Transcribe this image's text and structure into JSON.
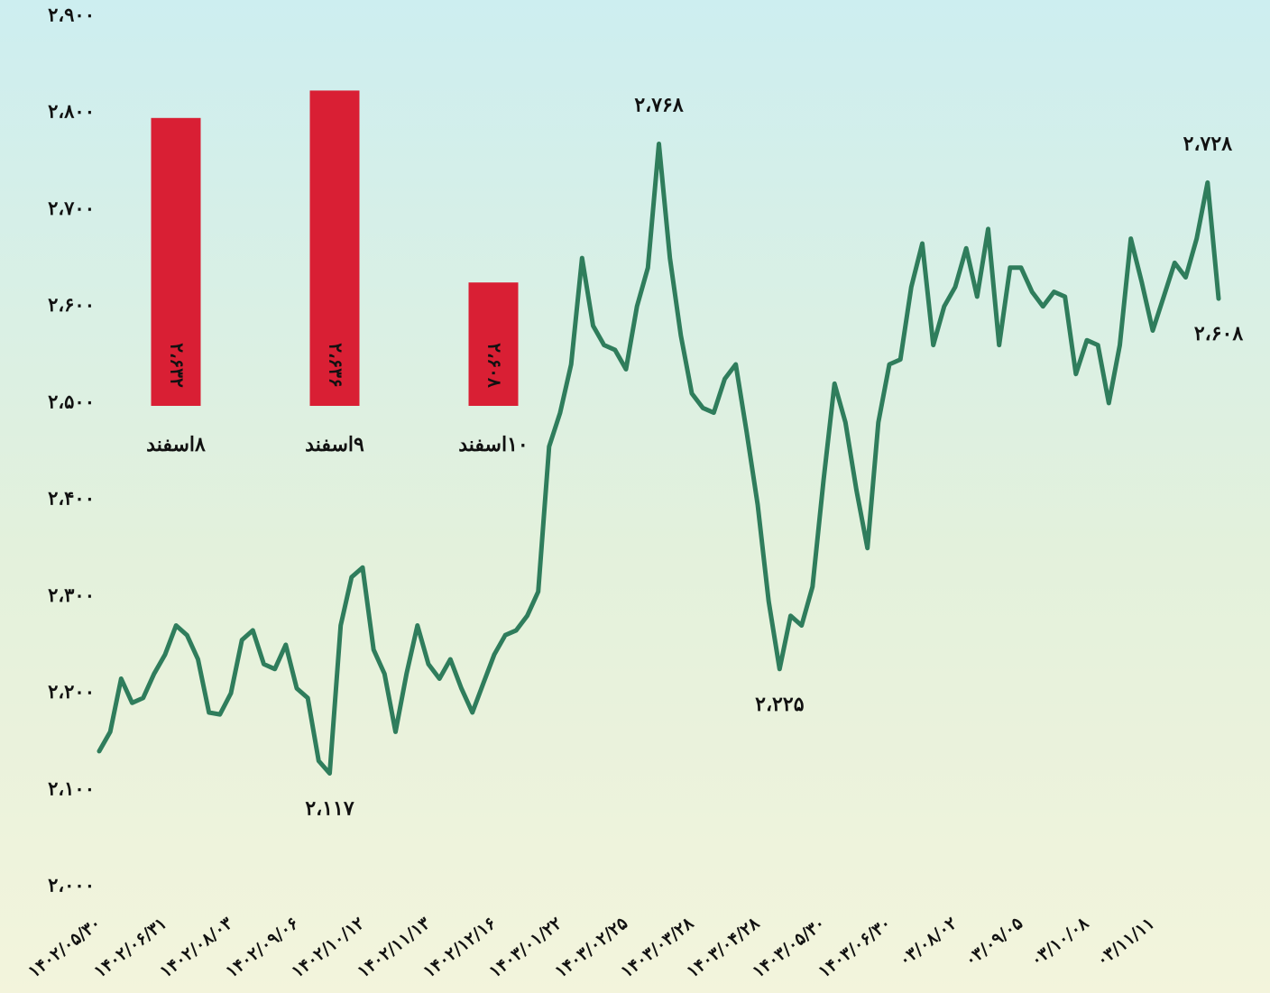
{
  "chart_data": [
    {
      "type": "line",
      "categories": [
        "۱۴۰۲/۰۵/۳۰",
        null,
        null,
        null,
        null,
        null,
        "۱۴۰۲/۰۶/۳۱",
        null,
        null,
        null,
        null,
        null,
        "۱۴۰۲/۰۸/۰۳",
        null,
        null,
        null,
        null,
        null,
        "۱۴۰۲/۰۹/۰۶",
        null,
        null,
        null,
        null,
        null,
        "۱۴۰۲/۱۰/۱۲",
        null,
        null,
        null,
        null,
        null,
        "۱۴۰۲/۱۱/۱۳",
        null,
        null,
        null,
        null,
        null,
        "۱۴۰۲/۱۲/۱۶",
        null,
        null,
        null,
        null,
        null,
        "۱۴۰۳/۰۱/۲۲",
        null,
        null,
        null,
        null,
        null,
        "۱۴۰۳/۰۲/۲۵",
        null,
        null,
        null,
        null,
        null,
        "۱۴۰۳/۰۳/۲۸",
        null,
        null,
        null,
        null,
        null,
        "۱۴۰۳/۰۴/۲۸",
        null,
        null,
        null,
        null,
        null,
        "۱۴۰۳/۰۵/۳۰",
        null,
        null,
        null,
        null,
        null,
        "۱۴۰۳/۰۶/۳۰",
        null,
        null,
        null,
        null,
        null,
        "۰۳/۰۸/۰۲",
        null,
        null,
        null,
        null,
        null,
        "۰۳/۰۹/۰۵",
        null,
        null,
        null,
        null,
        null,
        "۰۳/۱۰/۰۸",
        null,
        null,
        null,
        null,
        null,
        "۰۳/۱۱/۱۱",
        null,
        null,
        null,
        null,
        null,
        null
      ],
      "values": [
        2140,
        2160,
        2215,
        2190,
        2195,
        2220,
        2240,
        2270,
        2260,
        2235,
        2180,
        2178,
        2200,
        2255,
        2265,
        2230,
        2225,
        2250,
        2205,
        2195,
        2130,
        2117,
        2270,
        2320,
        2330,
        2245,
        2220,
        2160,
        2220,
        2270,
        2230,
        2215,
        2235,
        2205,
        2180,
        2210,
        2240,
        2260,
        2265,
        2280,
        2305,
        2455,
        2490,
        2540,
        2650,
        2580,
        2560,
        2555,
        2535,
        2600,
        2640,
        2768,
        2650,
        2570,
        2510,
        2495,
        2490,
        2525,
        2540,
        2470,
        2395,
        2295,
        2225,
        2280,
        2270,
        2310,
        2420,
        2520,
        2480,
        2410,
        2350,
        2480,
        2540,
        2545,
        2620,
        2665,
        2560,
        2600,
        2620,
        2660,
        2610,
        2680,
        2560,
        2640,
        2640,
        2615,
        2600,
        2615,
        2610,
        2530,
        2565,
        2560,
        2500,
        2560,
        2670,
        2625,
        2575,
        2610,
        2645,
        2630,
        2670,
        2728,
        2608
      ],
      "value_labels": [
        null,
        null,
        null,
        null,
        null,
        null,
        null,
        null,
        null,
        null,
        null,
        null,
        null,
        null,
        null,
        null,
        null,
        null,
        null,
        null,
        null,
        "۲،۱۱۷",
        null,
        null,
        null,
        null,
        null,
        null,
        null,
        null,
        null,
        null,
        null,
        null,
        null,
        null,
        null,
        null,
        null,
        null,
        null,
        null,
        null,
        null,
        null,
        null,
        null,
        null,
        null,
        null,
        null,
        "۲،۷۶۸",
        null,
        null,
        null,
        null,
        null,
        null,
        null,
        null,
        null,
        null,
        "۲،۲۲۵",
        null,
        null,
        null,
        null,
        null,
        null,
        null,
        null,
        null,
        null,
        null,
        null,
        null,
        null,
        null,
        null,
        null,
        null,
        null,
        null,
        null,
        null,
        null,
        null,
        null,
        null,
        null,
        null,
        null,
        null,
        null,
        null,
        null,
        null,
        null,
        null,
        null,
        null,
        "۲،۷۲۸",
        "۲،۶۰۸"
      ],
      "color": "#2f7d5c",
      "ylim": [
        2000,
        2900
      ],
      "yticks": [
        {
          "value": 2000,
          "label": "۲،۰۰۰"
        },
        {
          "value": 2100,
          "label": "۲،۱۰۰"
        },
        {
          "value": 2200,
          "label": "۲،۲۰۰"
        },
        {
          "value": 2300,
          "label": "۲،۳۰۰"
        },
        {
          "value": 2400,
          "label": "۲،۴۰۰"
        },
        {
          "value": 2500,
          "label": "۲،۵۰۰"
        },
        {
          "value": 2600,
          "label": "۲،۶۰۰"
        },
        {
          "value": 2700,
          "label": "۲،۷۰۰"
        },
        {
          "value": 2800,
          "label": "۲،۸۰۰"
        },
        {
          "value": 2900,
          "label": "۲،۹۰۰"
        }
      ],
      "grid": false
    },
    {
      "type": "bar",
      "categories": [
        "۸اسفند",
        "۹اسفند",
        "۱۰اسفند"
      ],
      "values": [
        2632,
        2636,
        2608
      ],
      "value_labels": [
        "۲،۶۳۲",
        "۲،۶۳۶",
        "۲،۶۰۸"
      ],
      "color": "#d91f34",
      "ylim": [
        2590,
        2640
      ]
    }
  ]
}
